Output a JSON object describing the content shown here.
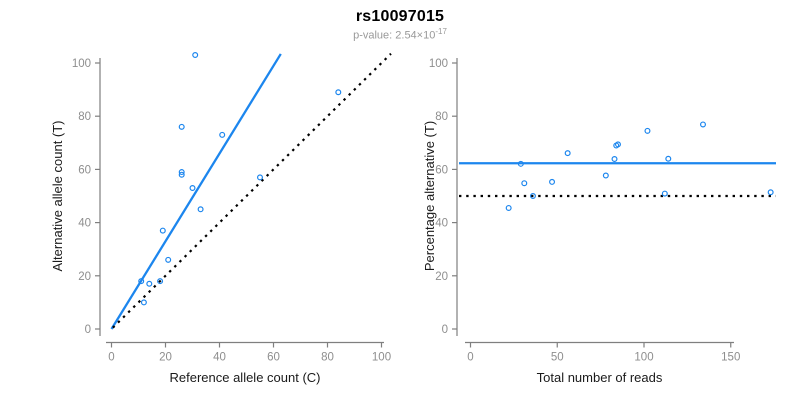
{
  "header": {
    "title": "rs10097015",
    "pvalue_prefix": "p-value: 2.54×10",
    "pvalue_exponent": "-17"
  },
  "colors": {
    "accent_blue": "#1C86EE",
    "point_blue": "#1C86EE",
    "identity_black": "#000000",
    "axis_line_gray": "#7F7F7F",
    "tick_label_gray": "#8E8E8E",
    "axis_title_color": "#1A1A1A",
    "title_color": "#000000",
    "subtitle_gray": "#999999",
    "background": "#FFFFFF"
  },
  "chart_data": [
    {
      "type": "scatter",
      "name": "allele-counts",
      "xlabel": "Reference allele count (C)",
      "ylabel": "Alternative allele count (T)",
      "xlim": [
        0,
        100
      ],
      "ylim": [
        0,
        103
      ],
      "xticks": [
        0,
        20,
        40,
        60,
        80,
        100
      ],
      "yticks": [
        0,
        20,
        40,
        60,
        80,
        100
      ],
      "grid": false,
      "points": [
        [
          12,
          10
        ],
        [
          11,
          18
        ],
        [
          14,
          17
        ],
        [
          18,
          18
        ],
        [
          21,
          26
        ],
        [
          19,
          37
        ],
        [
          33,
          45
        ],
        [
          30,
          53
        ],
        [
          26,
          58
        ],
        [
          26,
          59
        ],
        [
          55,
          57
        ],
        [
          41,
          73
        ],
        [
          26,
          76
        ],
        [
          84,
          89
        ],
        [
          31,
          103
        ]
      ],
      "lines": [
        {
          "style": "solid",
          "color_key": "accent_blue",
          "from": [
            0,
            0
          ],
          "to": [
            62.7,
            103.4
          ],
          "desc": "fitted allelic-ratio line (62.3% alternative)"
        },
        {
          "style": "dotted",
          "color_key": "identity_black",
          "from": [
            0.5,
            0.5
          ],
          "to": [
            103.5,
            103.5
          ],
          "desc": "identity line y = x (50/50 expectation)"
        }
      ]
    },
    {
      "type": "scatter",
      "name": "percentage-vs-coverage",
      "xlabel": "Total number of reads",
      "ylabel": "Percentage alternative (T)",
      "xlim": [
        0,
        180
      ],
      "ylim": [
        0,
        100
      ],
      "xticks": [
        0,
        50,
        100,
        150
      ],
      "yticks": [
        0,
        20,
        40,
        60,
        80,
        100
      ],
      "grid": false,
      "points": [
        [
          22,
          45.5
        ],
        [
          29,
          62.1
        ],
        [
          31,
          54.8
        ],
        [
          36,
          50.0
        ],
        [
          47,
          55.3
        ],
        [
          56,
          66.1
        ],
        [
          78,
          57.7
        ],
        [
          83,
          63.9
        ],
        [
          84,
          69.0
        ],
        [
          85,
          69.4
        ],
        [
          102,
          74.5
        ],
        [
          112,
          50.9
        ],
        [
          114,
          64.0
        ],
        [
          134,
          76.9
        ],
        [
          173,
          51.4
        ]
      ],
      "lines": [
        {
          "style": "solid",
          "color_key": "accent_blue",
          "y": 62.3,
          "desc": "overall percentage alternative (62.3%)"
        },
        {
          "style": "dotted",
          "color_key": "identity_black",
          "y": 50,
          "desc": "50% expectation line"
        }
      ]
    }
  ]
}
